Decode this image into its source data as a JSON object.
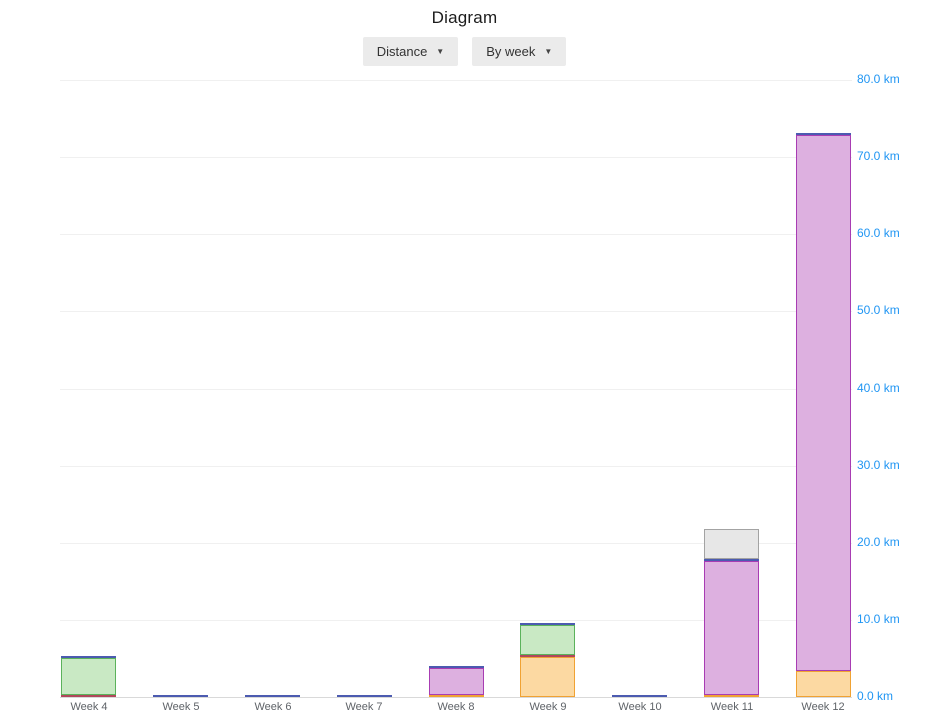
{
  "page": {
    "title": "Diagram"
  },
  "controls": {
    "metric_dropdown": {
      "label": "Distance",
      "caret_glyph": "▼"
    },
    "grouping_dropdown": {
      "label": "By week",
      "caret_glyph": "▼"
    }
  },
  "chart_data": {
    "type": "bar",
    "stacked": true,
    "title": "Diagram",
    "unit": "km",
    "categories": [
      "Week 4",
      "Week 5",
      "Week 6",
      "Week 7",
      "Week 8",
      "Week 9",
      "Week 10",
      "Week 11",
      "Week 12"
    ],
    "series": [
      {
        "name": "orange-activity",
        "line_color": "#f0a233",
        "fill_color": "#fcd9a2",
        "values": [
          0,
          0,
          0,
          0,
          0.2,
          5.2,
          0,
          0.2,
          3.4
        ]
      },
      {
        "name": "red-activity",
        "line_color": "#b0485c",
        "fill_color": "#c65a70",
        "values": [
          0.2,
          0,
          0,
          0,
          0,
          0.2,
          0,
          0,
          0
        ]
      },
      {
        "name": "green-activity",
        "line_color": "#5bb25b",
        "fill_color": "#c9e9c4",
        "values": [
          4.9,
          0,
          0,
          0,
          0,
          3.9,
          0,
          0,
          0
        ]
      },
      {
        "name": "purple-activity",
        "line_color": "#a83cb3",
        "fill_color": "#ddb0e0",
        "values": [
          0,
          0,
          0,
          0,
          3.5,
          0,
          0,
          17.4,
          69.5
        ]
      },
      {
        "name": "blue-activity",
        "line_color": "#4c5bb0",
        "fill_color": "#5d6cb8",
        "values": [
          0.2,
          0.2,
          0.2,
          0.2,
          0.2,
          0.2,
          0.2,
          0.3,
          0.2
        ]
      },
      {
        "name": "gray-activity",
        "line_color": "#a3a3a3",
        "fill_color": "#e7e7e7",
        "values": [
          0,
          0,
          0,
          0,
          0,
          0,
          0,
          3.9,
          0
        ]
      }
    ],
    "totals_km": [
      5.3,
      0.2,
      0.2,
      0.2,
      3.9,
      9.5,
      0.2,
      21.8,
      73.1
    ],
    "ylim": [
      0,
      80
    ],
    "ytick_labels": [
      "0.0 km",
      "10.0 km",
      "20.0 km",
      "30.0 km",
      "40.0 km",
      "50.0 km",
      "60.0 km",
      "70.0 km",
      "80.0 km"
    ],
    "y_axis_side": "right",
    "grid": true,
    "legend": "none",
    "axis_label_color": "#2196f3",
    "category_label_color": "#5f6368"
  }
}
